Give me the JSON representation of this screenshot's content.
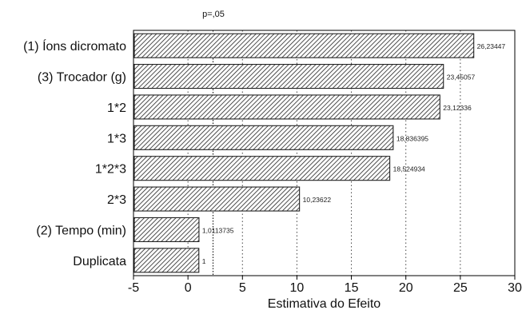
{
  "chart_data": {
    "type": "bar",
    "orientation": "horizontal",
    "categories": [
      "(1) Íons dicromato",
      "(3) Trocador (g)",
      "1*2",
      "1*3",
      "1*2*3",
      "2*3",
      "(2) Tempo (min)",
      "Duplicata"
    ],
    "values": [
      26.23447,
      23.45057,
      23.12336,
      18.836395,
      18.524934,
      10.23622,
      1.0113735,
      1
    ],
    "value_labels": [
      "26,23447",
      "23,45057",
      "23,12336",
      "18,836395",
      "18,524934",
      "10,23622",
      "1,0113735",
      "1"
    ],
    "xlabel": "Estimativa do Efeito",
    "xlim": [
      -5,
      30
    ],
    "xticks": [
      -5,
      0,
      5,
      10,
      15,
      20,
      25,
      30
    ],
    "grid": "vertical dotted",
    "reference_line": {
      "value": 2.3,
      "label": "p=,05"
    },
    "bar_fill": "diagonal hatch",
    "colors": {
      "bar_outline": "#222222",
      "hatch": "#222222",
      "grid": "#444444"
    }
  }
}
